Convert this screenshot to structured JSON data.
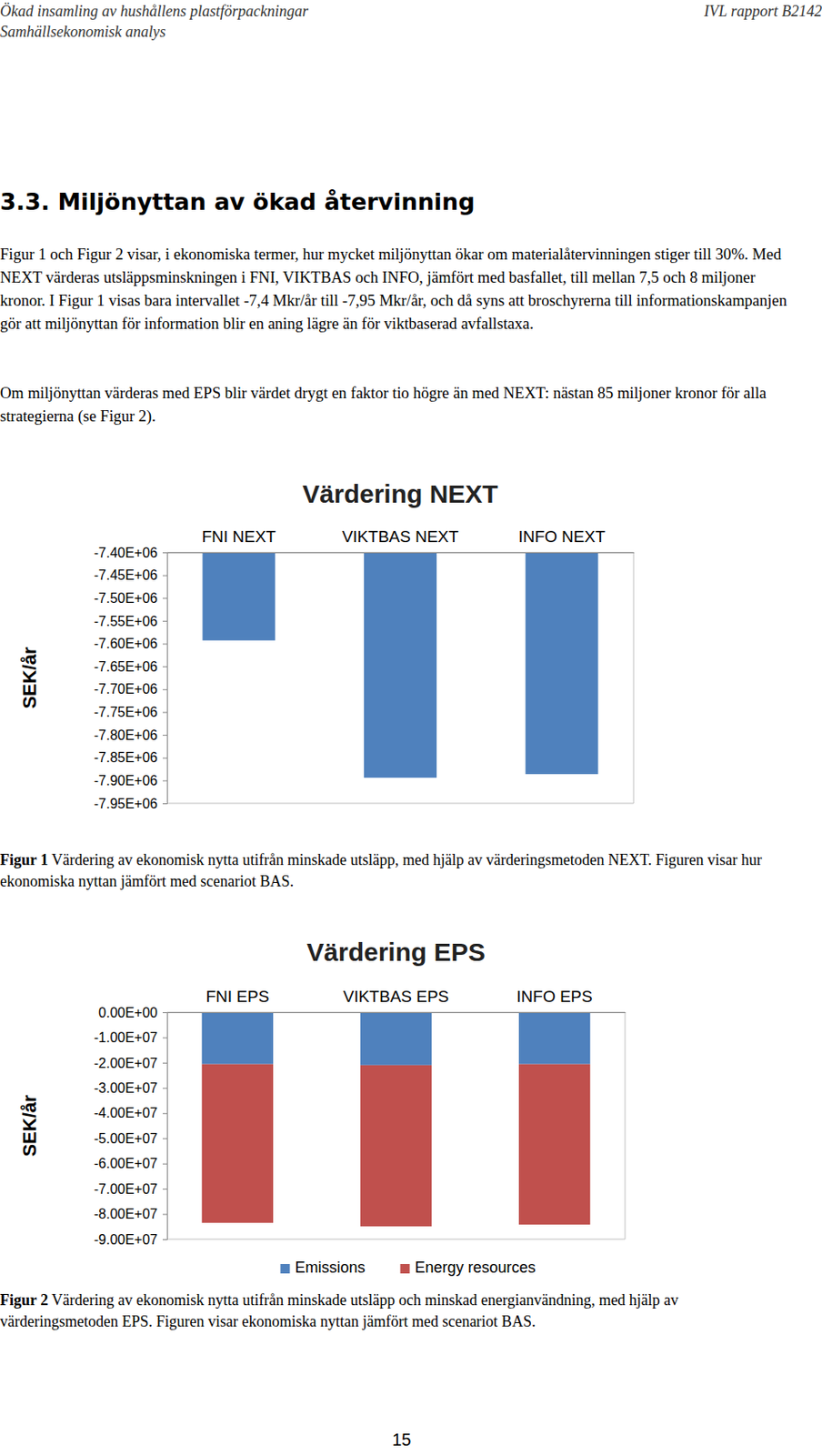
{
  "header": {
    "left": [
      "Ökad insamling av hushållens plastförpackningar",
      "Samhällsekonomisk analys"
    ],
    "right": "IVL rapport B2142"
  },
  "heading": "3.3. Miljönyttan av ökad återvinning",
  "paragraphs": [
    "Figur 1 och Figur 2 visar, i ekonomiska termer, hur mycket miljönyttan ökar om materialåtervinningen stiger till 30%. Med NEXT värderas utsläppsminskningen i FNI, VIKTBAS och INFO, jämfört med basfallet, till mellan 7,5 och 8 miljoner kronor. I Figur 1 visas bara intervallet -7,4 Mkr/år till -7,95 Mkr/år, och då syns att broschyrerna till informationskampanjen gör att miljönyttan för information blir en aning lägre än för viktbaserad avfallstaxa.",
    "Om miljönyttan värderas med EPS blir värdet drygt en faktor tio högre än med NEXT: nästan 85 miljoner kronor för alla strategierna (se Figur 2)."
  ],
  "chart_data": [
    {
      "type": "bar",
      "title": "Värdering NEXT",
      "y_label": "SEK/år",
      "categories": [
        "FNI NEXT",
        "VIKTBAS NEXT",
        "INFO NEXT"
      ],
      "values": [
        -7593000,
        -7894000,
        -7886000
      ],
      "color": "#4f81bd",
      "ylim": [
        -7950000,
        -7400000
      ],
      "yticks": [
        {
          "value": -7400000,
          "label": "-7.40E+06"
        },
        {
          "value": -7450000,
          "label": "-7.45E+06"
        },
        {
          "value": -7500000,
          "label": "-7.50E+06"
        },
        {
          "value": -7550000,
          "label": "-7.55E+06"
        },
        {
          "value": -7600000,
          "label": "-7.60E+06"
        },
        {
          "value": -7650000,
          "label": "-7.65E+06"
        },
        {
          "value": -7700000,
          "label": "-7.70E+06"
        },
        {
          "value": -7750000,
          "label": "-7.75E+06"
        },
        {
          "value": -7800000,
          "label": "-7.80E+06"
        },
        {
          "value": -7850000,
          "label": "-7.85E+06"
        },
        {
          "value": -7900000,
          "label": "-7.90E+06"
        },
        {
          "value": -7950000,
          "label": "-7.95E+06"
        }
      ],
      "grid": false
    },
    {
      "type": "bar",
      "title": "Värdering EPS",
      "y_label": "SEK/år",
      "stacked": true,
      "legend": "bottom",
      "categories": [
        "FNI EPS",
        "VIKTBAS EPS",
        "INFO EPS"
      ],
      "series": [
        {
          "name": "Emissions",
          "color": "#4f81bd",
          "values": [
            -20600000,
            -21000000,
            -20600000
          ]
        },
        {
          "name": "Energy resources",
          "color": "#c0504d",
          "values": [
            -62900000,
            -63900000,
            -63600000
          ]
        }
      ],
      "ylim": [
        -90000000,
        0
      ],
      "yticks": [
        {
          "value": 0,
          "label": "0.00E+00"
        },
        {
          "value": -10000000,
          "label": "-1.00E+07"
        },
        {
          "value": -20000000,
          "label": "-2.00E+07"
        },
        {
          "value": -30000000,
          "label": "-3.00E+07"
        },
        {
          "value": -40000000,
          "label": "-4.00E+07"
        },
        {
          "value": -50000000,
          "label": "-5.00E+07"
        },
        {
          "value": -60000000,
          "label": "-6.00E+07"
        },
        {
          "value": -70000000,
          "label": "-7.00E+07"
        },
        {
          "value": -80000000,
          "label": "-8.00E+07"
        },
        {
          "value": -90000000,
          "label": "-9.00E+07"
        }
      ],
      "grid": false
    }
  ],
  "captions": [
    {
      "label": "Figur 1",
      "text": "Värdering av ekonomisk nytta utifrån minskade utsläpp, med hjälp av värderingsmetoden NEXT. Figuren visar hur ekonomiska nyttan jämfört med scenariot BAS."
    },
    {
      "label": "Figur 2",
      "text": "Värdering av ekonomisk nytta utifrån minskade utsläpp och minskad energianvändning, med hjälp av värderingsmetoden EPS. Figuren visar ekonomiska nyttan jämfört med scenariot BAS."
    }
  ],
  "page_number": "15"
}
